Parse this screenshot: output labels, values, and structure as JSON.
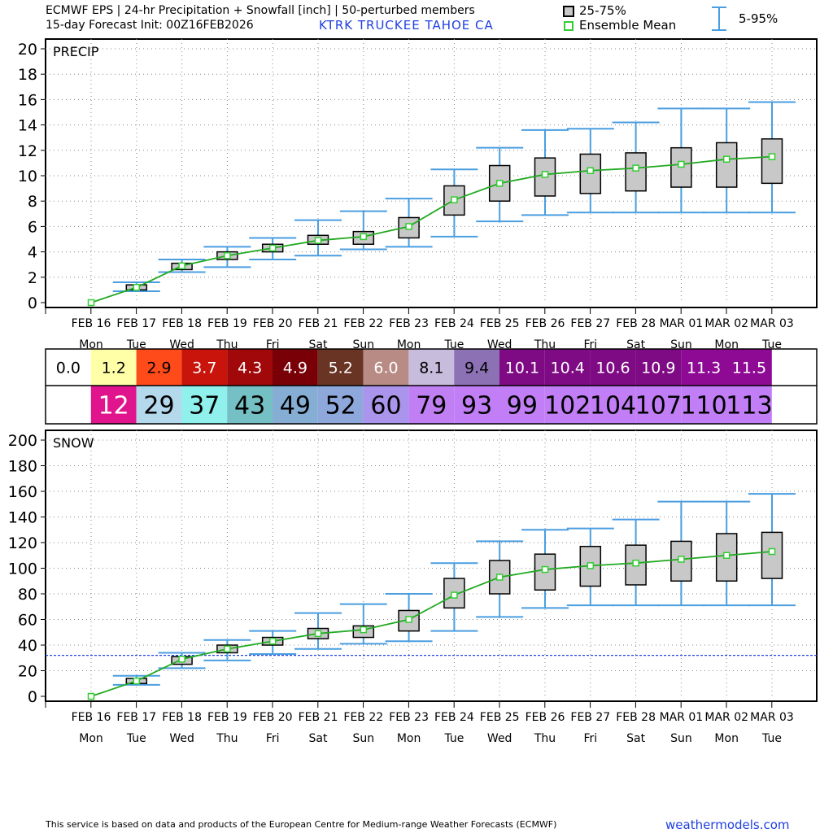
{
  "header": {
    "line1": "ECMWF EPS | 24-hr Precipitation + Snowfall [inch] | 50-perturbed members",
    "line2": "15-day Forecast Init: 00Z16FEB2026",
    "location": "KTRK  TRUCKEE TAHOE  CA"
  },
  "legend": {
    "box_label": "25-75%",
    "mean_label": "Ensemble Mean",
    "whisker_label": "5-95%"
  },
  "colors": {
    "whisker": "#4a9ee0",
    "box_fill": "#c8c8c8",
    "mean_line": "#22aa22",
    "mean_marker": "#33cc33",
    "reference_line": "#2244dd",
    "grid": "#888888"
  },
  "footer": {
    "disclaimer": "This service is based on data and products of the European Centre for Medium-range Weather Forecasts (ECMWF)",
    "site": "weathermodels.com"
  },
  "chart_data": [
    {
      "type": "box",
      "title": "PRECIP",
      "ylim": [
        0,
        20
      ],
      "yticks": [
        0,
        2,
        4,
        6,
        8,
        10,
        12,
        14,
        16,
        18,
        20
      ],
      "categories": [
        "FEB 16",
        "FEB 17",
        "FEB 18",
        "FEB 19",
        "FEB 20",
        "FEB 21",
        "FEB 22",
        "FEB 23",
        "FEB 24",
        "FEB 25",
        "FEB 26",
        "FEB 27",
        "FEB 28",
        "MAR 01",
        "MAR 02",
        "MAR 03"
      ],
      "weekdays": [
        "Mon",
        "Tue",
        "Wed",
        "Thu",
        "Fri",
        "Sat",
        "Sun",
        "Mon",
        "Tue",
        "Wed",
        "Thu",
        "Fri",
        "Sat",
        "Sun",
        "Mon",
        "Tue"
      ],
      "series": [
        {
          "name": "5%",
          "values": [
            0,
            0.9,
            2.4,
            2.8,
            3.4,
            3.7,
            4.2,
            4.4,
            5.2,
            6.4,
            6.9,
            7.1,
            7.1,
            7.1,
            7.1,
            7.1
          ]
        },
        {
          "name": "25%",
          "values": [
            0,
            1.0,
            2.6,
            3.4,
            4.0,
            4.6,
            4.6,
            5.1,
            6.9,
            8.0,
            8.4,
            8.6,
            8.8,
            9.1,
            9.1,
            9.4
          ]
        },
        {
          "name": "Ensemble Mean",
          "values": [
            0.0,
            1.2,
            2.9,
            3.7,
            4.3,
            4.9,
            5.2,
            6.0,
            8.1,
            9.4,
            10.1,
            10.4,
            10.6,
            10.9,
            11.3,
            11.5
          ]
        },
        {
          "name": "75%",
          "values": [
            0,
            1.4,
            3.1,
            4.0,
            4.6,
            5.3,
            5.6,
            6.7,
            9.2,
            10.8,
            11.4,
            11.7,
            11.8,
            12.2,
            12.6,
            12.9
          ]
        },
        {
          "name": "95%",
          "values": [
            0,
            1.6,
            3.4,
            4.4,
            5.1,
            6.5,
            7.2,
            8.2,
            10.5,
            12.2,
            13.6,
            13.7,
            14.2,
            15.3,
            15.3,
            15.8
          ]
        }
      ]
    },
    {
      "type": "box",
      "title": "SNOW",
      "ylim": [
        0,
        200
      ],
      "yticks": [
        0,
        20,
        40,
        60,
        80,
        100,
        120,
        140,
        160,
        180,
        200
      ],
      "reference_value": 32,
      "categories": [
        "FEB 16",
        "FEB 17",
        "FEB 18",
        "FEB 19",
        "FEB 20",
        "FEB 21",
        "FEB 22",
        "FEB 23",
        "FEB 24",
        "FEB 25",
        "FEB 26",
        "FEB 27",
        "FEB 28",
        "MAR 01",
        "MAR 02",
        "MAR 03"
      ],
      "weekdays": [
        "Mon",
        "Tue",
        "Wed",
        "Thu",
        "Fri",
        "Sat",
        "Sun",
        "Mon",
        "Tue",
        "Wed",
        "Thu",
        "Fri",
        "Sat",
        "Sun",
        "Mon",
        "Tue"
      ],
      "series": [
        {
          "name": "5%",
          "values": [
            0,
            9,
            22,
            28,
            33,
            37,
            41,
            43,
            51,
            62,
            69,
            71,
            71,
            71,
            71,
            71
          ]
        },
        {
          "name": "25%",
          "values": [
            0,
            10,
            25,
            34,
            40,
            45,
            46,
            51,
            69,
            80,
            83,
            86,
            87,
            90,
            90,
            92
          ]
        },
        {
          "name": "Ensemble Mean",
          "values": [
            0,
            12,
            29,
            37,
            43,
            49,
            52,
            60,
            79,
            93,
            99,
            102,
            104,
            107,
            110,
            113
          ]
        },
        {
          "name": "75%",
          "values": [
            0,
            14,
            31,
            40,
            46,
            53,
            55,
            67,
            92,
            106,
            111,
            117,
            118,
            121,
            127,
            128
          ]
        },
        {
          "name": "95%",
          "values": [
            0,
            16,
            34,
            44,
            51,
            65,
            72,
            80,
            104,
            121,
            130,
            131,
            138,
            152,
            152,
            158
          ]
        }
      ]
    }
  ],
  "table": {
    "precip_row": [
      {
        "value": "0.0",
        "bg": "#ffffff",
        "fg": "#000000"
      },
      {
        "value": "1.2",
        "bg": "#ffffa8",
        "fg": "#000000"
      },
      {
        "value": "2.9",
        "bg": "#ff4a1a",
        "fg": "#000000"
      },
      {
        "value": "3.7",
        "bg": "#c8140a",
        "fg": "#ffffff"
      },
      {
        "value": "4.3",
        "bg": "#a0080a",
        "fg": "#ffffff"
      },
      {
        "value": "4.9",
        "bg": "#7a0008",
        "fg": "#ffffff"
      },
      {
        "value": "5.2",
        "bg": "#6a3424",
        "fg": "#ffffff"
      },
      {
        "value": "6.0",
        "bg": "#b88c84",
        "fg": "#ffffff"
      },
      {
        "value": "8.1",
        "bg": "#c8bcdc",
        "fg": "#000000"
      },
      {
        "value": "9.4",
        "bg": "#8c72b4",
        "fg": "#000000"
      },
      {
        "value": "10.1",
        "bg": "#7e0a84",
        "fg": "#ffffff"
      },
      {
        "value": "10.4",
        "bg": "#7e0a84",
        "fg": "#ffffff"
      },
      {
        "value": "10.6",
        "bg": "#7e0a84",
        "fg": "#ffffff"
      },
      {
        "value": "10.9",
        "bg": "#7e0a84",
        "fg": "#ffffff"
      },
      {
        "value": "11.3",
        "bg": "#8e0a94",
        "fg": "#ffffff"
      },
      {
        "value": "11.5",
        "bg": "#8e0a94",
        "fg": "#ffffff"
      }
    ],
    "snow_row": [
      {
        "value": "",
        "bg": "#ffffff",
        "fg": "#000000"
      },
      {
        "value": "12",
        "bg": "#e0148c",
        "fg": "#ffffff"
      },
      {
        "value": "29",
        "bg": "#b4d8ec",
        "fg": "#000000"
      },
      {
        "value": "37",
        "bg": "#90f0ec",
        "fg": "#000000"
      },
      {
        "value": "43",
        "bg": "#74c0c4",
        "fg": "#000000"
      },
      {
        "value": "49",
        "bg": "#86aed4",
        "fg": "#000000"
      },
      {
        "value": "52",
        "bg": "#8ea8dc",
        "fg": "#000000"
      },
      {
        "value": "60",
        "bg": "#aa94ec",
        "fg": "#000000"
      },
      {
        "value": "79",
        "bg": "#c080f4",
        "fg": "#000000"
      },
      {
        "value": "93",
        "bg": "#c27ef6",
        "fg": "#000000"
      },
      {
        "value": "99",
        "bg": "#c27ef6",
        "fg": "#000000"
      },
      {
        "value": "102",
        "bg": "#c27ef6",
        "fg": "#000000"
      },
      {
        "value": "104",
        "bg": "#c27ef6",
        "fg": "#000000"
      },
      {
        "value": "107",
        "bg": "#c27ef6",
        "fg": "#000000"
      },
      {
        "value": "110",
        "bg": "#c27ef6",
        "fg": "#000000"
      },
      {
        "value": "113",
        "bg": "#c27ef6",
        "fg": "#000000"
      }
    ]
  }
}
